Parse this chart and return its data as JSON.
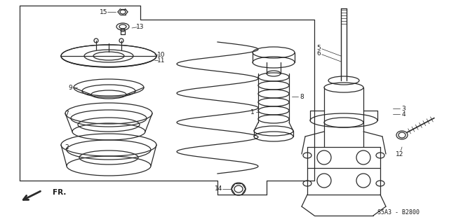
{
  "bg_color": "#ffffff",
  "line_color": "#2a2a2a",
  "text_color": "#1a1a1a",
  "fig_width": 6.4,
  "fig_height": 3.2,
  "dpi": 100,
  "diagram_code": "S5A3 - B2800",
  "fr_label": "FR."
}
